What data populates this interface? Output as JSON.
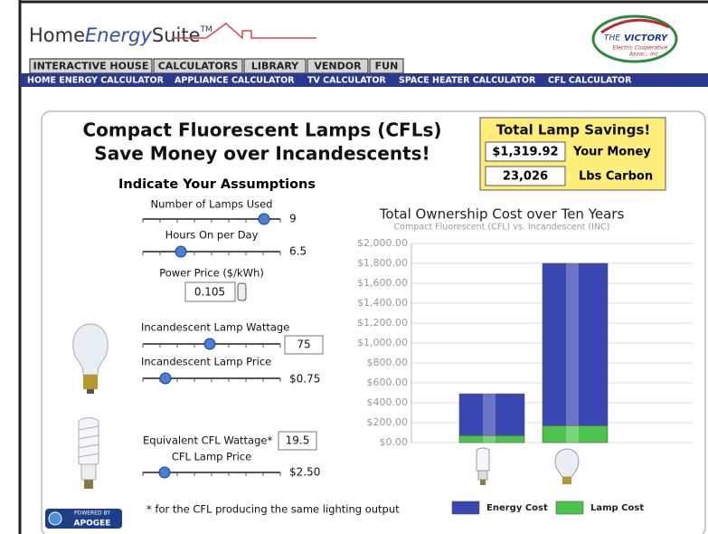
{
  "header": {
    "brand": {
      "prefix": "Home",
      "emphasis": "Energy",
      "suffix": "Suite",
      "mark": "TM"
    },
    "partner_logo": {
      "line1": "THE",
      "line2": "VICTORY",
      "line3": "Electric Cooperative",
      "line4": "Assoc., Inc"
    }
  },
  "tabs": [
    "INTERACTIVE HOUSE",
    "CALCULATORS",
    "LIBRARY",
    "VENDOR",
    "FUN"
  ],
  "nav": [
    "HOME ENERGY CALCULATOR",
    "APPLIANCE CALCULATOR",
    "TV CALCULATOR",
    "SPACE HEATER CALCULATOR",
    "CFL CALCULATOR"
  ],
  "calculator": {
    "title": [
      "Compact Fluorescent Lamps (CFLs)",
      "Save Money over Incandescents!"
    ],
    "savings": {
      "title": "Total Lamp Savings!",
      "money": "$1,319.92",
      "money_label": "Your Money",
      "carbon": "23,026",
      "carbon_label": "Lbs Carbon"
    },
    "assumptions_title": "Indicate Your Assumptions",
    "inputs": [
      {
        "label": "Number of Lamps Used",
        "value": "9"
      },
      {
        "label": "Hours On per Day",
        "value": "6.5"
      },
      {
        "label": "Power Price ($/kWh)",
        "value": "0.105"
      },
      {
        "label": "Incandescent Lamp Wattage",
        "value": "75"
      },
      {
        "label": "Incandescent Lamp Price",
        "value": "$0.75"
      },
      {
        "label": "Equivalent CFL Wattage*",
        "value": "19.5"
      },
      {
        "label": "CFL Lamp Price",
        "value": "$2.50"
      }
    ],
    "footnote": "* for the CFL producing the same lighting output",
    "powered_by": {
      "line1": "POWERED BY",
      "line2": "APOGEE"
    }
  },
  "chart_data": {
    "type": "bar",
    "stacked": true,
    "title": "Total Ownership Cost over Ten Years",
    "subtitle": "Compact Fluorescent (CFL) vs. Incandescent (INC)",
    "categories": [
      null,
      null
    ],
    "series": [
      {
        "name": "Energy Cost",
        "color": "#3a46b2",
        "values": [
          420,
          1630
        ]
      },
      {
        "name": "Lamp Cost",
        "color": "#4cc44c",
        "values": [
          70,
          170
        ]
      }
    ],
    "ylim": [
      0,
      2000
    ],
    "yticks": [
      {
        "value": 0,
        "label": "$0.00"
      },
      {
        "value": 200,
        "label": "$200.00"
      },
      {
        "value": 400,
        "label": "$400.00"
      },
      {
        "value": 600,
        "label": "$600.00"
      },
      {
        "value": 800,
        "label": "$800.00"
      },
      {
        "value": 1000,
        "label": "$1,000.00"
      },
      {
        "value": 1200,
        "label": "$1,200.00"
      },
      {
        "value": 1400,
        "label": "$1,400.00"
      },
      {
        "value": 1600,
        "label": "$1,600.00"
      },
      {
        "value": 1800,
        "label": "$1,800.00"
      },
      {
        "value": 2000,
        "label": "$2,000.00"
      }
    ],
    "grid": true
  }
}
